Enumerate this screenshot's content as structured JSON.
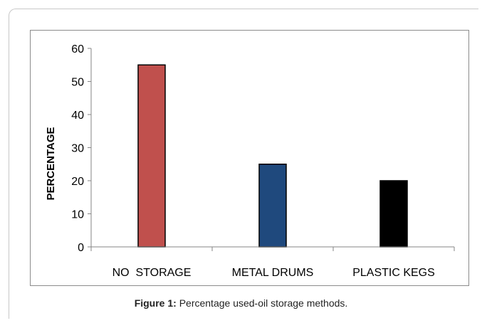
{
  "caption": {
    "label": "Figure 1:",
    "text": "Percentage used-oil storage methods."
  },
  "colors": {
    "bar_outline": "#000000",
    "axis": "#868686"
  },
  "chart_data": {
    "type": "bar",
    "categories": [
      "NO  STORAGE",
      "METAL DRUMS",
      "PLASTIC KEGS"
    ],
    "values": [
      55,
      25,
      20
    ],
    "bar_colors": [
      "#c0504d",
      "#1f497d",
      "#000000"
    ],
    "title": "",
    "xlabel": "",
    "ylabel": "PERCENTAGE",
    "ylim": [
      0,
      60
    ],
    "yticks": [
      0,
      10,
      20,
      30,
      40,
      50,
      60
    ],
    "grid": false,
    "legend": "none"
  }
}
